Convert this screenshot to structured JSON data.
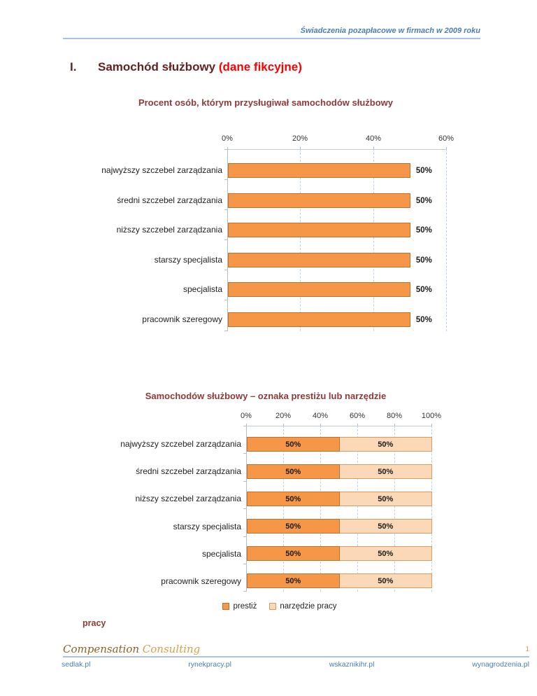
{
  "header": {
    "title": "Świadczenia pozapłacowe w firmach w 2009 roku"
  },
  "heading": {
    "number": "I.",
    "title": "Samochód służbowy ",
    "note": "(dane fikcyjne)"
  },
  "chart_data": [
    {
      "type": "bar",
      "title": "Procent osób, którym przysługiwał samochodów służbowy",
      "categories": [
        "najwyższy szczebel zarządzania",
        "średni szczebel zarządzania",
        "niższy szczebel zarządzania",
        "starszy specjalista",
        "specjalista",
        "pracownik szeregowy"
      ],
      "values": [
        50,
        50,
        50,
        50,
        50,
        50
      ],
      "value_labels": [
        "50%",
        "50%",
        "50%",
        "50%",
        "50%",
        "50%"
      ],
      "x_ticks": [
        "0%",
        "20%",
        "40%",
        "60%"
      ],
      "xlim": [
        0,
        60
      ],
      "grid": "vertical-dashed",
      "legend_position": "none",
      "bar_color": "#F59747"
    },
    {
      "type": "stacked-bar",
      "title": "Samochodów służbowy – oznaka prestiżu lub narzędzie",
      "title_wrap": "pracy",
      "categories": [
        "najwyższy szczebel zarządzania",
        "średni szczebel zarządzania",
        "niższy szczebel zarządzania",
        "starszy specjalista",
        "specjalista",
        "pracownik szeregowy"
      ],
      "series": [
        {
          "name": "prestiż",
          "color": "#F59747",
          "values": [
            50,
            50,
            50,
            50,
            50,
            50
          ],
          "labels": [
            "50%",
            "50%",
            "50%",
            "50%",
            "50%",
            "50%"
          ]
        },
        {
          "name": "narzędzie pracy",
          "color": "#FBD8B8",
          "values": [
            50,
            50,
            50,
            50,
            50,
            50
          ],
          "labels": [
            "50%",
            "50%",
            "50%",
            "50%",
            "50%",
            "50%"
          ]
        }
      ],
      "x_ticks": [
        "0%",
        "20%",
        "40%",
        "60%",
        "80%",
        "100%"
      ],
      "xlim": [
        0,
        100
      ],
      "grid": "vertical-dashed",
      "legend_position": "bottom"
    }
  ],
  "footer": {
    "brand_word_1": "Compensation ",
    "brand_word_2": "Consulting",
    "page_number": "1",
    "links": [
      "sedlak.pl",
      "rynekpracy.pl",
      "wskaznikihr.pl",
      "wynagrodzenia.pl"
    ]
  },
  "colors": {
    "accent_blue": "#4A7EBB",
    "rule_blue": "#A9C3E5",
    "heading_maroon": "#622423",
    "note_red": "#FF0000",
    "chart_title_maroon": "#8E3A38",
    "bar_orange": "#F59747",
    "bar_border": "#B97333",
    "bar_light": "#FBD8B8",
    "gridline_blue": "#BCD2EC",
    "script_brown": "#8D6128",
    "script_gold": "#D9A04A"
  }
}
